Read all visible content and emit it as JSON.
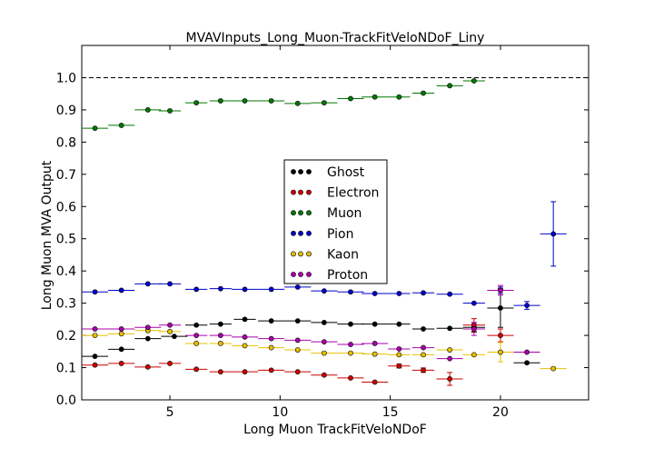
{
  "chart_data": {
    "type": "scatter",
    "title": "MVAVInputs_Long_Muon-TrackFitVeloNDoF_Liny",
    "xlabel": "Long Muon TrackFitVeloNDoF",
    "ylabel": "Long Muon MVA Output",
    "xlim": [
      1,
      24
    ],
    "ylim": [
      0,
      1.1
    ],
    "xticks": [
      5,
      10,
      15,
      20
    ],
    "yticks": [
      0.0,
      0.1,
      0.2,
      0.3,
      0.4,
      0.5,
      0.6,
      0.7,
      0.8,
      0.9,
      1.0
    ],
    "reference_line": 1.0,
    "grid": false,
    "legend_position": "center",
    "series": [
      {
        "name": "Ghost",
        "color": "#000000",
        "points": [
          {
            "x": 1.6,
            "y": 0.135,
            "xerr": 0.6,
            "yerr": 0.005
          },
          {
            "x": 2.8,
            "y": 0.157,
            "xerr": 0.6,
            "yerr": 0.005
          },
          {
            "x": 4.0,
            "y": 0.19,
            "xerr": 0.6,
            "yerr": 0.005
          },
          {
            "x": 5.2,
            "y": 0.197,
            "xerr": 0.6,
            "yerr": 0.005
          },
          {
            "x": 6.2,
            "y": 0.232,
            "xerr": 0.5,
            "yerr": 0.004
          },
          {
            "x": 7.3,
            "y": 0.235,
            "xerr": 0.5,
            "yerr": 0.004
          },
          {
            "x": 8.4,
            "y": 0.25,
            "xerr": 0.5,
            "yerr": 0.004
          },
          {
            "x": 9.6,
            "y": 0.245,
            "xerr": 0.6,
            "yerr": 0.004
          },
          {
            "x": 10.8,
            "y": 0.245,
            "xerr": 0.6,
            "yerr": 0.004
          },
          {
            "x": 12.0,
            "y": 0.24,
            "xerr": 0.6,
            "yerr": 0.004
          },
          {
            "x": 13.2,
            "y": 0.235,
            "xerr": 0.6,
            "yerr": 0.004
          },
          {
            "x": 14.3,
            "y": 0.235,
            "xerr": 0.6,
            "yerr": 0.004
          },
          {
            "x": 15.4,
            "y": 0.235,
            "xerr": 0.5,
            "yerr": 0.004
          },
          {
            "x": 16.5,
            "y": 0.22,
            "xerr": 0.5,
            "yerr": 0.004
          },
          {
            "x": 17.7,
            "y": 0.222,
            "xerr": 0.6,
            "yerr": 0.005
          },
          {
            "x": 18.8,
            "y": 0.225,
            "xerr": 0.5,
            "yerr": 0.015
          },
          {
            "x": 20.0,
            "y": 0.285,
            "xerr": 0.6,
            "yerr": 0.06
          },
          {
            "x": 21.2,
            "y": 0.115,
            "xerr": 0.6,
            "yerr": 0.005
          }
        ]
      },
      {
        "name": "Electron",
        "color": "#cc0000",
        "points": [
          {
            "x": 1.6,
            "y": 0.108,
            "xerr": 0.6,
            "yerr": 0.004
          },
          {
            "x": 2.8,
            "y": 0.113,
            "xerr": 0.6,
            "yerr": 0.004
          },
          {
            "x": 4.0,
            "y": 0.102,
            "xerr": 0.6,
            "yerr": 0.004
          },
          {
            "x": 5.0,
            "y": 0.113,
            "xerr": 0.5,
            "yerr": 0.004
          },
          {
            "x": 6.2,
            "y": 0.095,
            "xerr": 0.5,
            "yerr": 0.004
          },
          {
            "x": 7.3,
            "y": 0.087,
            "xerr": 0.5,
            "yerr": 0.004
          },
          {
            "x": 8.4,
            "y": 0.087,
            "xerr": 0.6,
            "yerr": 0.004
          },
          {
            "x": 9.6,
            "y": 0.092,
            "xerr": 0.6,
            "yerr": 0.004
          },
          {
            "x": 10.8,
            "y": 0.087,
            "xerr": 0.6,
            "yerr": 0.004
          },
          {
            "x": 12.0,
            "y": 0.077,
            "xerr": 0.6,
            "yerr": 0.004
          },
          {
            "x": 13.2,
            "y": 0.068,
            "xerr": 0.6,
            "yerr": 0.004
          },
          {
            "x": 14.3,
            "y": 0.055,
            "xerr": 0.6,
            "yerr": 0.005
          },
          {
            "x": 15.4,
            "y": 0.105,
            "xerr": 0.5,
            "yerr": 0.006
          },
          {
            "x": 16.5,
            "y": 0.092,
            "xerr": 0.5,
            "yerr": 0.007
          },
          {
            "x": 17.7,
            "y": 0.065,
            "xerr": 0.6,
            "yerr": 0.02
          },
          {
            "x": 18.8,
            "y": 0.232,
            "xerr": 0.5,
            "yerr": 0.02
          },
          {
            "x": 20.0,
            "y": 0.2,
            "xerr": 0.6,
            "yerr": 0.02
          }
        ]
      },
      {
        "name": "Muon",
        "color": "#007700",
        "points": [
          {
            "x": 1.6,
            "y": 0.843,
            "xerr": 0.6,
            "yerr": 0.004
          },
          {
            "x": 2.8,
            "y": 0.852,
            "xerr": 0.6,
            "yerr": 0.004
          },
          {
            "x": 4.0,
            "y": 0.9,
            "xerr": 0.6,
            "yerr": 0.004
          },
          {
            "x": 5.0,
            "y": 0.897,
            "xerr": 0.5,
            "yerr": 0.004
          },
          {
            "x": 6.2,
            "y": 0.922,
            "xerr": 0.5,
            "yerr": 0.004
          },
          {
            "x": 7.3,
            "y": 0.928,
            "xerr": 0.5,
            "yerr": 0.004
          },
          {
            "x": 8.4,
            "y": 0.928,
            "xerr": 0.6,
            "yerr": 0.004
          },
          {
            "x": 9.6,
            "y": 0.928,
            "xerr": 0.6,
            "yerr": 0.004
          },
          {
            "x": 10.8,
            "y": 0.92,
            "xerr": 0.6,
            "yerr": 0.004
          },
          {
            "x": 12.0,
            "y": 0.922,
            "xerr": 0.6,
            "yerr": 0.004
          },
          {
            "x": 13.2,
            "y": 0.935,
            "xerr": 0.6,
            "yerr": 0.004
          },
          {
            "x": 14.3,
            "y": 0.94,
            "xerr": 0.6,
            "yerr": 0.004
          },
          {
            "x": 15.4,
            "y": 0.94,
            "xerr": 0.5,
            "yerr": 0.004
          },
          {
            "x": 16.5,
            "y": 0.952,
            "xerr": 0.5,
            "yerr": 0.004
          },
          {
            "x": 17.7,
            "y": 0.975,
            "xerr": 0.6,
            "yerr": 0.004
          },
          {
            "x": 18.8,
            "y": 0.99,
            "xerr": 0.5,
            "yerr": 0.004
          }
        ]
      },
      {
        "name": "Pion",
        "color": "#0000cc",
        "points": [
          {
            "x": 1.6,
            "y": 0.335,
            "xerr": 0.6,
            "yerr": 0.004
          },
          {
            "x": 2.8,
            "y": 0.34,
            "xerr": 0.6,
            "yerr": 0.004
          },
          {
            "x": 4.0,
            "y": 0.36,
            "xerr": 0.6,
            "yerr": 0.004
          },
          {
            "x": 5.0,
            "y": 0.36,
            "xerr": 0.5,
            "yerr": 0.004
          },
          {
            "x": 6.2,
            "y": 0.343,
            "xerr": 0.5,
            "yerr": 0.004
          },
          {
            "x": 7.3,
            "y": 0.345,
            "xerr": 0.5,
            "yerr": 0.004
          },
          {
            "x": 8.4,
            "y": 0.343,
            "xerr": 0.6,
            "yerr": 0.004
          },
          {
            "x": 9.6,
            "y": 0.343,
            "xerr": 0.6,
            "yerr": 0.004
          },
          {
            "x": 10.8,
            "y": 0.35,
            "xerr": 0.6,
            "yerr": 0.004
          },
          {
            "x": 12.0,
            "y": 0.338,
            "xerr": 0.6,
            "yerr": 0.004
          },
          {
            "x": 13.2,
            "y": 0.335,
            "xerr": 0.6,
            "yerr": 0.004
          },
          {
            "x": 14.3,
            "y": 0.33,
            "xerr": 0.6,
            "yerr": 0.004
          },
          {
            "x": 15.4,
            "y": 0.33,
            "xerr": 0.5,
            "yerr": 0.004
          },
          {
            "x": 16.5,
            "y": 0.332,
            "xerr": 0.5,
            "yerr": 0.004
          },
          {
            "x": 17.7,
            "y": 0.328,
            "xerr": 0.6,
            "yerr": 0.004
          },
          {
            "x": 18.8,
            "y": 0.3,
            "xerr": 0.5,
            "yerr": 0.004
          },
          {
            "x": 20.0,
            "y": 0.34,
            "xerr": 0.6,
            "yerr": 0.01
          },
          {
            "x": 21.2,
            "y": 0.293,
            "xerr": 0.6,
            "yerr": 0.012
          },
          {
            "x": 22.4,
            "y": 0.515,
            "xerr": 0.6,
            "yerr": 0.1
          }
        ]
      },
      {
        "name": "Kaon",
        "color": "#e6c000",
        "points": [
          {
            "x": 1.6,
            "y": 0.2,
            "xerr": 0.6,
            "yerr": 0.004
          },
          {
            "x": 2.8,
            "y": 0.205,
            "xerr": 0.6,
            "yerr": 0.004
          },
          {
            "x": 4.0,
            "y": 0.215,
            "xerr": 0.6,
            "yerr": 0.004
          },
          {
            "x": 5.0,
            "y": 0.212,
            "xerr": 0.5,
            "yerr": 0.004
          },
          {
            "x": 6.2,
            "y": 0.175,
            "xerr": 0.5,
            "yerr": 0.004
          },
          {
            "x": 7.3,
            "y": 0.175,
            "xerr": 0.5,
            "yerr": 0.004
          },
          {
            "x": 8.4,
            "y": 0.168,
            "xerr": 0.6,
            "yerr": 0.004
          },
          {
            "x": 9.6,
            "y": 0.162,
            "xerr": 0.6,
            "yerr": 0.004
          },
          {
            "x": 10.8,
            "y": 0.155,
            "xerr": 0.6,
            "yerr": 0.004
          },
          {
            "x": 12.0,
            "y": 0.145,
            "xerr": 0.6,
            "yerr": 0.004
          },
          {
            "x": 13.2,
            "y": 0.145,
            "xerr": 0.6,
            "yerr": 0.004
          },
          {
            "x": 14.3,
            "y": 0.142,
            "xerr": 0.6,
            "yerr": 0.004
          },
          {
            "x": 15.4,
            "y": 0.14,
            "xerr": 0.5,
            "yerr": 0.004
          },
          {
            "x": 16.5,
            "y": 0.14,
            "xerr": 0.5,
            "yerr": 0.004
          },
          {
            "x": 17.7,
            "y": 0.155,
            "xerr": 0.6,
            "yerr": 0.005
          },
          {
            "x": 18.8,
            "y": 0.14,
            "xerr": 0.5,
            "yerr": 0.005
          },
          {
            "x": 20.0,
            "y": 0.148,
            "xerr": 0.6,
            "yerr": 0.03
          },
          {
            "x": 22.4,
            "y": 0.097,
            "xerr": 0.6,
            "yerr": 0.005
          }
        ]
      },
      {
        "name": "Proton",
        "color": "#aa00aa",
        "points": [
          {
            "x": 1.6,
            "y": 0.22,
            "xerr": 0.6,
            "yerr": 0.004
          },
          {
            "x": 2.8,
            "y": 0.22,
            "xerr": 0.6,
            "yerr": 0.004
          },
          {
            "x": 4.0,
            "y": 0.225,
            "xerr": 0.6,
            "yerr": 0.004
          },
          {
            "x": 5.0,
            "y": 0.232,
            "xerr": 0.5,
            "yerr": 0.004
          },
          {
            "x": 6.2,
            "y": 0.2,
            "xerr": 0.5,
            "yerr": 0.004
          },
          {
            "x": 7.3,
            "y": 0.2,
            "xerr": 0.5,
            "yerr": 0.004
          },
          {
            "x": 8.4,
            "y": 0.195,
            "xerr": 0.6,
            "yerr": 0.004
          },
          {
            "x": 9.6,
            "y": 0.19,
            "xerr": 0.6,
            "yerr": 0.004
          },
          {
            "x": 10.8,
            "y": 0.185,
            "xerr": 0.6,
            "yerr": 0.004
          },
          {
            "x": 12.0,
            "y": 0.18,
            "xerr": 0.6,
            "yerr": 0.004
          },
          {
            "x": 13.2,
            "y": 0.172,
            "xerr": 0.6,
            "yerr": 0.004
          },
          {
            "x": 14.3,
            "y": 0.175,
            "xerr": 0.6,
            "yerr": 0.004
          },
          {
            "x": 15.4,
            "y": 0.158,
            "xerr": 0.5,
            "yerr": 0.004
          },
          {
            "x": 16.5,
            "y": 0.162,
            "xerr": 0.5,
            "yerr": 0.004
          },
          {
            "x": 17.7,
            "y": 0.128,
            "xerr": 0.6,
            "yerr": 0.005
          },
          {
            "x": 18.8,
            "y": 0.22,
            "xerr": 0.5,
            "yerr": 0.02
          },
          {
            "x": 20.0,
            "y": 0.34,
            "xerr": 0.6,
            "yerr": 0.015
          },
          {
            "x": 21.2,
            "y": 0.148,
            "xerr": 0.6,
            "yerr": 0.005
          }
        ]
      }
    ]
  }
}
